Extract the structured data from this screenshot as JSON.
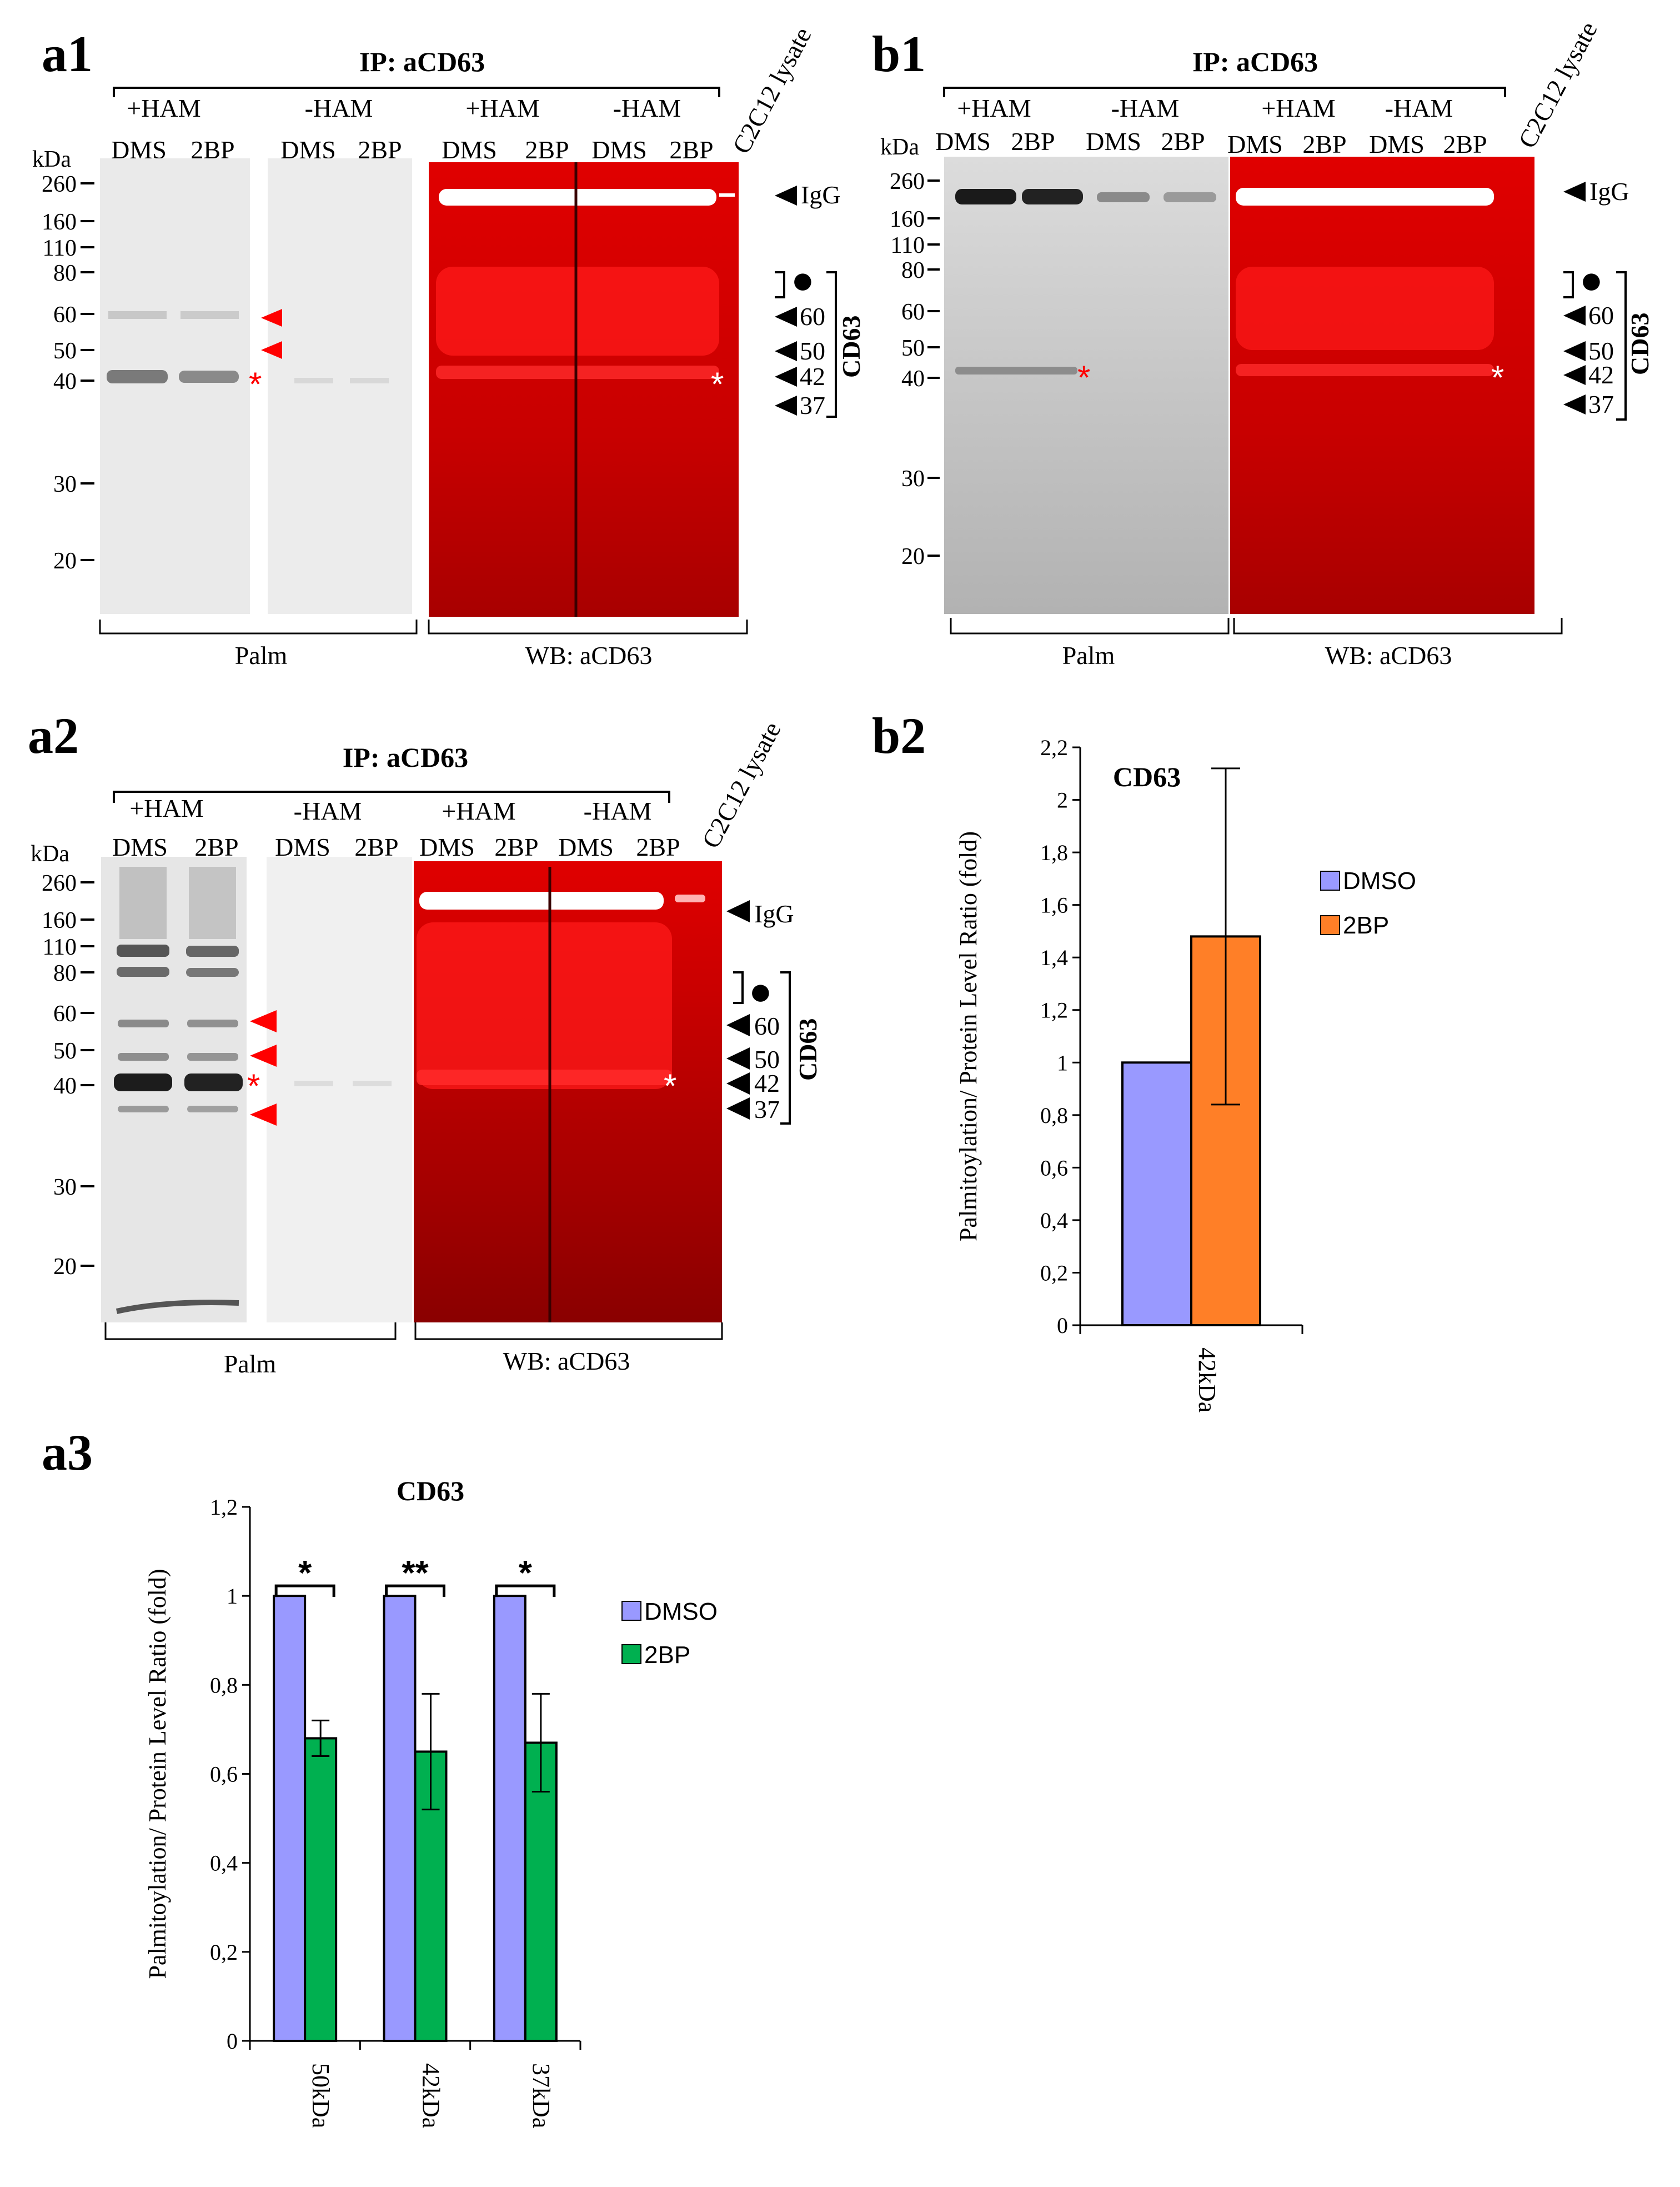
{
  "panel_labels": {
    "a1": "a1",
    "b1": "b1",
    "a2": "a2",
    "b2": "b2",
    "a3": "a3"
  },
  "blot_text": {
    "ip_title": "IP: aCD63",
    "plus_ham": "+HAM",
    "minus_ham": "-HAM",
    "dms": "DMS",
    "twobp": "2BP",
    "lysate": "C2C12 lysate",
    "kda": "kDa",
    "markers": [
      "260",
      "160",
      "110",
      "80",
      "60",
      "50",
      "40",
      "30",
      "20"
    ],
    "igg": "IgG",
    "band_60": "60",
    "band_50": "50",
    "band_42": "42",
    "band_37": "37",
    "cd63": "CD63",
    "dot": "●",
    "star": "*",
    "palm": "Palm",
    "wb": "WB: aCD63"
  },
  "colors": {
    "dmso_a3": "#9999ff",
    "twobp_a3": "#00b050",
    "dmso_b2": "#9999ff",
    "twobp_b2": "#ff7f27",
    "blot_red": "#d40000",
    "marker_red": "#ff0000"
  },
  "chart_data": [
    {
      "id": "b2",
      "type": "bar",
      "title": "CD63",
      "ylabel": "Palmitoylation/ Protein Level Ratio (fold)",
      "xlabel": "",
      "categories": [
        "42kDa"
      ],
      "ylim": [
        0,
        2.2
      ],
      "yticks": [
        "0",
        "0,2",
        "0,4",
        "0,6",
        "0,8",
        "1",
        "1,2",
        "1,4",
        "1,6",
        "1,8",
        "2",
        "2,2"
      ],
      "series": [
        {
          "name": "DMSO",
          "values": [
            1.0
          ],
          "errors": [
            0
          ]
        },
        {
          "name": "2BP",
          "values": [
            1.48
          ],
          "errors": [
            0.64
          ]
        }
      ],
      "legend": "right"
    },
    {
      "id": "a3",
      "type": "bar",
      "title": "CD63",
      "ylabel": "Palmitoylation/ Protein Level Ratio (fold)",
      "xlabel": "",
      "categories": [
        "50kDa",
        "42kDa",
        "37kDa"
      ],
      "ylim": [
        0,
        1.2
      ],
      "yticks": [
        "0",
        "0,2",
        "0,4",
        "0,6",
        "0,8",
        "1",
        "1,2"
      ],
      "series": [
        {
          "name": "DMSO",
          "values": [
            1.0,
            1.0,
            1.0
          ],
          "errors": [
            0,
            0,
            0
          ]
        },
        {
          "name": "2BP",
          "values": [
            0.68,
            0.65,
            0.67
          ],
          "errors": [
            0.04,
            0.13,
            0.11
          ]
        }
      ],
      "significance": [
        "*",
        "**",
        "*"
      ],
      "legend": "right"
    }
  ]
}
